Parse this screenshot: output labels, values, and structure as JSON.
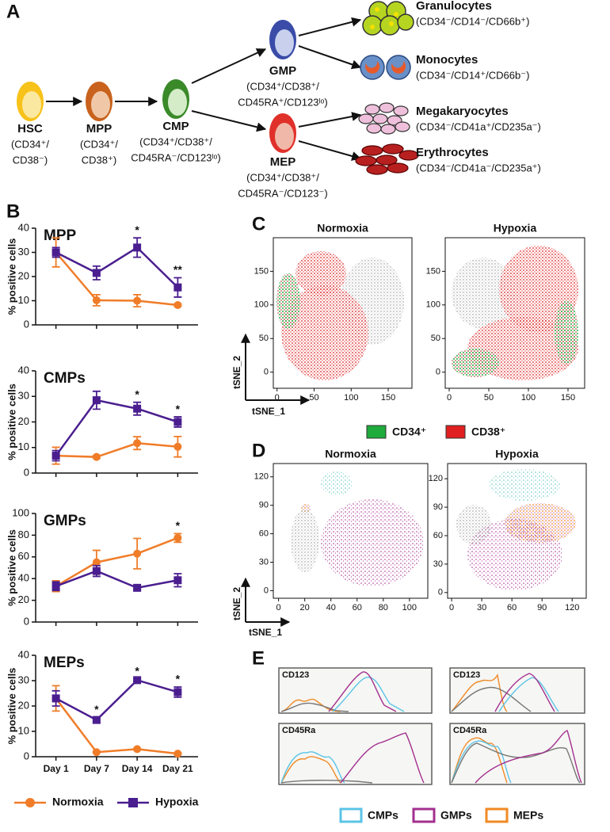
{
  "panel_labels": [
    "A",
    "B",
    "C",
    "D",
    "E"
  ],
  "diagram": {
    "nodes": [
      {
        "label": "HSC",
        "markers": [
          "(CD34⁺/",
          "CD38⁻)"
        ]
      },
      {
        "label": "MPP",
        "markers": [
          "(CD34⁺/",
          "CD38⁺)"
        ]
      },
      {
        "label": "CMP",
        "markers": [
          "(CD34⁺/CD38⁺/",
          "CD45RA⁻/CD123ˡᵒ)"
        ]
      },
      {
        "label": "GMP",
        "markers": [
          "(CD34⁺/CD38⁺/",
          "CD45RA⁺/CD123ˡᵒ)"
        ]
      },
      {
        "label": "MEP",
        "markers": [
          "(CD34⁺/CD38⁺/",
          "CD45RA⁻/CD123⁻)"
        ]
      },
      {
        "label": "Granulocytes",
        "markers": [
          "(CD34⁻/CD14⁻/CD66b⁺)"
        ]
      },
      {
        "label": "Monocytes",
        "markers": [
          "(CD34⁻/CD14⁺/CD66b⁻)"
        ]
      },
      {
        "label": "Megakaryocytes",
        "markers": [
          "(CD34⁻/CD41a⁺/CD235a⁻)"
        ]
      },
      {
        "label": "Erythrocytes",
        "markers": [
          "(CD34⁻/CD41a⁻/CD235a⁺)"
        ]
      }
    ]
  },
  "chart_data": [
    {
      "type": "line",
      "title": "MPP",
      "y_label": "% positive cells",
      "categories": [
        null,
        null,
        null,
        null
      ],
      "ylim": [
        0,
        40
      ],
      "yticks": [
        0,
        10,
        20,
        30,
        40
      ],
      "series": [
        {
          "color": "#f07c28",
          "marker": "circle",
          "values": [
            30,
            10.2,
            10,
            8.2
          ],
          "errors": [
            6,
            2.3,
            2.5,
            0.5
          ],
          "significance": [
            null,
            null,
            null,
            null
          ]
        },
        {
          "color": "#4a1e8f",
          "marker": "square",
          "values": [
            30,
            21.5,
            32,
            15.5
          ],
          "errors": [
            2,
            2.8,
            4,
            4
          ],
          "significance": [
            null,
            null,
            "*",
            "**"
          ]
        }
      ]
    },
    {
      "type": "line",
      "title": "CMPs",
      "y_label": "% positive cells",
      "categories": [
        null,
        null,
        null,
        null
      ],
      "ylim": [
        0,
        40
      ],
      "yticks": [
        0,
        10,
        20,
        30,
        40
      ],
      "series": [
        {
          "color": "#f07c28",
          "marker": "circle",
          "values": [
            6.8,
            6.3,
            11.7,
            10.3
          ],
          "errors": [
            3.3,
            0.5,
            2.5,
            4
          ],
          "significance": [
            null,
            null,
            null,
            null
          ]
        },
        {
          "color": "#4a1e8f",
          "marker": "square",
          "values": [
            6.8,
            28.5,
            25.2,
            20
          ],
          "errors": [
            2,
            3.5,
            2.5,
            2
          ],
          "significance": [
            null,
            null,
            "*",
            "*"
          ]
        }
      ]
    },
    {
      "type": "line",
      "title": "GMPs",
      "y_label": "% positive cells",
      "categories": [
        null,
        null,
        null,
        null
      ],
      "ylim": [
        0,
        100
      ],
      "yticks": [
        0,
        20,
        40,
        60,
        80,
        100
      ],
      "series": [
        {
          "color": "#f07c28",
          "marker": "circle",
          "values": [
            33,
            55,
            63,
            77.5
          ],
          "errors": [
            5,
            11,
            14,
            4
          ],
          "significance": [
            null,
            null,
            null,
            "*"
          ]
        },
        {
          "color": "#4a1e8f",
          "marker": "square",
          "values": [
            33,
            47,
            31.5,
            38.5
          ],
          "errors": [
            4,
            5,
            2,
            6
          ],
          "significance": [
            null,
            null,
            null,
            null
          ]
        }
      ]
    },
    {
      "type": "line",
      "title": "MEPs",
      "y_label": "% positive cells",
      "categories": [
        "Day 1",
        "Day 7",
        "Day 14",
        "Day 21"
      ],
      "ylim": [
        0,
        40
      ],
      "yticks": [
        0,
        10,
        20,
        30,
        40
      ],
      "series": [
        {
          "name": "Normoxia",
          "color": "#f07c28",
          "marker": "circle",
          "values": [
            23,
            1.8,
            3,
            1.2
          ],
          "errors": [
            5,
            0.3,
            0.3,
            0.3
          ],
          "significance": [
            null,
            null,
            null,
            null
          ]
        },
        {
          "name": "Hypoxia",
          "color": "#4a1e8f",
          "marker": "square",
          "values": [
            23,
            14.5,
            30.2,
            25.5
          ],
          "errors": [
            3,
            1,
            0.5,
            2
          ],
          "significance": [
            null,
            "*",
            "*",
            "*"
          ]
        }
      ]
    },
    {
      "type": "scatter",
      "title": "Normoxia",
      "xlim": [
        -5,
        182
      ],
      "xticks": [
        0,
        50,
        100,
        150
      ],
      "ylim": [
        -24,
        200
      ],
      "yticks": [
        0,
        50,
        100,
        150
      ]
    },
    {
      "type": "scatter",
      "title": "Hypoxia",
      "xlim": [
        -5,
        171
      ],
      "xticks": [
        0,
        50,
        100,
        150
      ],
      "ylim": [
        -24,
        200
      ],
      "yticks": [
        0,
        50,
        100,
        150
      ]
    },
    {
      "type": "scatter",
      "title": "Normoxia",
      "xlim": [
        -4,
        114
      ],
      "xticks": [
        0,
        20,
        40,
        60,
        80,
        100
      ],
      "ylim": [
        -8,
        134
      ],
      "yticks": [
        0,
        30,
        60,
        90,
        120
      ]
    },
    {
      "type": "scatter",
      "title": "Hypoxia",
      "xlim": [
        -4,
        134
      ],
      "xticks": [
        0,
        30,
        60,
        90,
        120
      ],
      "ylim": [
        -6,
        136
      ],
      "yticks": [
        0,
        30,
        60,
        90,
        120
      ]
    }
  ],
  "panel_c": {
    "x_label": "tSNE_1",
    "y_label": "tSNE_2",
    "legend": [
      {
        "name": "CD34⁺",
        "color": "#1faa3c"
      },
      {
        "name": "CD38⁺",
        "color": "#e02020"
      }
    ]
  },
  "panel_d": {
    "x_label": "tSNE_1",
    "y_label": "tSNE_2"
  },
  "panel_e": {
    "plots": [
      {
        "label": "CD123"
      },
      {
        "label": "CD123"
      },
      {
        "label": "CD45Ra"
      },
      {
        "label": "CD45Ra"
      }
    ],
    "legend": [
      {
        "name": "CMPs",
        "color": "#5bc4e6"
      },
      {
        "name": "GMPs",
        "color": "#a3308f"
      },
      {
        "name": "MEPs",
        "color": "#f08a24"
      }
    ]
  }
}
